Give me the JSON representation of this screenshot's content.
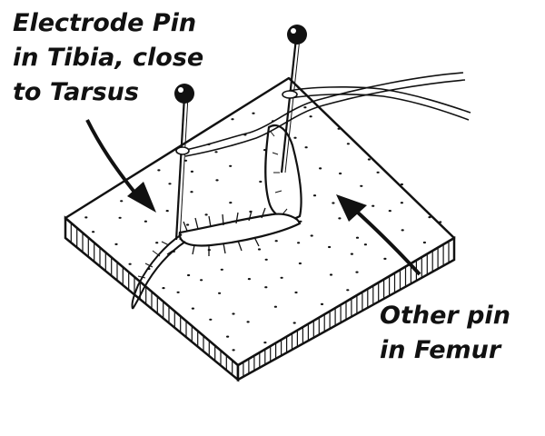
{
  "labels": {
    "electrode": {
      "lines": [
        "Electrode Pin",
        "in Tibia, close",
        "to Tarsus"
      ]
    },
    "femur": {
      "lines": [
        "Other pin",
        "in Femur"
      ]
    }
  },
  "icons": {
    "board": "sponge-board",
    "leg": "cockroach-leg",
    "pin_tibia": "electrode-pin",
    "pin_femur": "pin",
    "wire": "electrode-wire",
    "arrow_a": "arrow-to-tibia",
    "arrow_b": "arrow-to-femur"
  },
  "colors": {
    "ink": "#111111",
    "background": "#ffffff"
  }
}
